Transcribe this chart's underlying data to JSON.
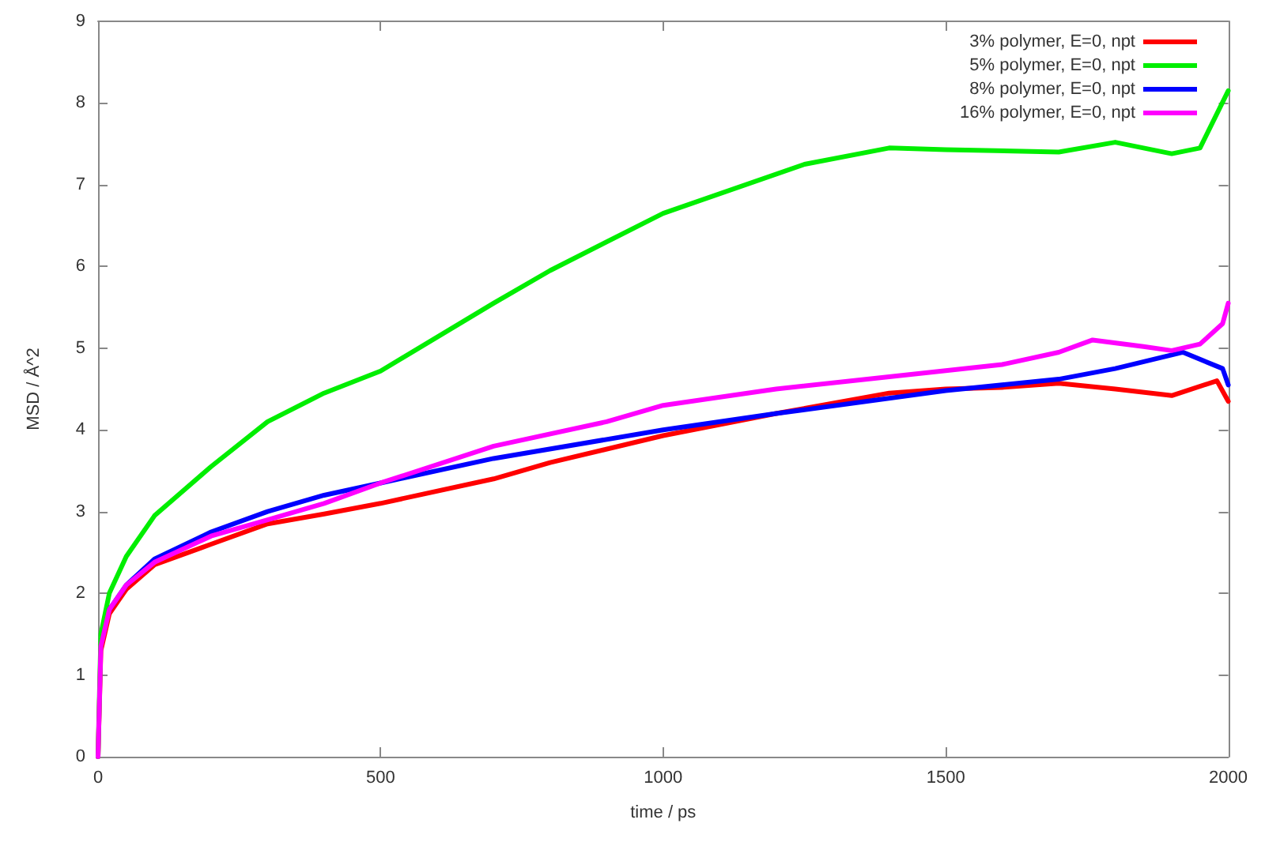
{
  "chart_data": {
    "type": "line",
    "xlabel": "time / ps",
    "ylabel": "MSD / Å^2",
    "xlim": [
      0,
      2000
    ],
    "xticks": [
      0,
      500,
      1000,
      1500,
      2000
    ],
    "ylim": [
      0,
      9
    ],
    "yticks": [
      0,
      1,
      2,
      3,
      4,
      5,
      6,
      7,
      8,
      9
    ],
    "grid": false,
    "legend": "top right",
    "marker": "none",
    "line_style": "solid",
    "series": [
      {
        "name": "3% polymer, E=0, npt",
        "color": "#ff0000",
        "x": [
          0,
          5,
          20,
          50,
          100,
          200,
          300,
          400,
          500,
          700,
          800,
          1000,
          1200,
          1400,
          1500,
          1600,
          1700,
          1800,
          1900,
          1980,
          2000
        ],
        "values": [
          0,
          1.3,
          1.75,
          2.05,
          2.35,
          2.6,
          2.85,
          2.97,
          3.1,
          3.4,
          3.6,
          3.93,
          4.2,
          4.45,
          4.5,
          4.52,
          4.57,
          4.5,
          4.42,
          4.6,
          4.35
        ]
      },
      {
        "name": "5% polymer, E=0, npt",
        "color": "#00ee00",
        "x": [
          0,
          5,
          20,
          50,
          100,
          200,
          300,
          400,
          500,
          700,
          800,
          1000,
          1250,
          1400,
          1500,
          1700,
          1800,
          1900,
          1950,
          2000
        ],
        "values": [
          0,
          1.5,
          2.0,
          2.45,
          2.95,
          3.55,
          4.1,
          4.45,
          4.72,
          5.55,
          5.95,
          6.65,
          7.25,
          7.45,
          7.43,
          7.4,
          7.52,
          7.38,
          7.45,
          8.15
        ]
      },
      {
        "name": "8% polymer, E=0, npt",
        "color": "#0000ff",
        "x": [
          20,
          50,
          100,
          200,
          300,
          400,
          500,
          700,
          1000,
          1200,
          1500,
          1700,
          1800,
          1920,
          1990,
          2000
        ],
        "values": [
          1.8,
          2.1,
          2.42,
          2.75,
          3.0,
          3.2,
          3.35,
          3.65,
          4.0,
          4.2,
          4.48,
          4.62,
          4.75,
          4.95,
          4.75,
          4.55
        ]
      },
      {
        "name": "16% polymer, E=0, npt",
        "color": "#ff00ff",
        "x": [
          0,
          5,
          20,
          50,
          100,
          200,
          300,
          400,
          500,
          700,
          900,
          1000,
          1200,
          1400,
          1600,
          1700,
          1760,
          1850,
          1900,
          1950,
          1990,
          2000
        ],
        "values": [
          0,
          1.35,
          1.8,
          2.1,
          2.38,
          2.7,
          2.9,
          3.1,
          3.35,
          3.8,
          4.1,
          4.3,
          4.5,
          4.65,
          4.8,
          4.95,
          5.1,
          5.02,
          4.97,
          5.05,
          5.3,
          5.55
        ]
      }
    ]
  }
}
